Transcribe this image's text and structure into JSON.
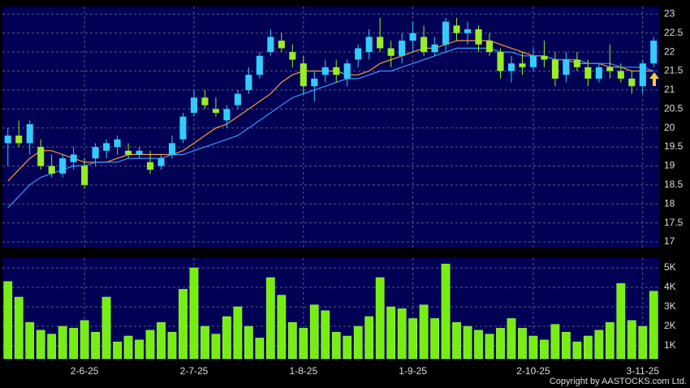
{
  "chart_data": [
    {
      "type": "candlestick",
      "up_color": "#33ccff",
      "down_color": "#99ee22",
      "open": [
        19.6,
        19.8,
        19.6,
        19.5,
        19.0,
        18.8,
        19.1,
        19.0,
        19.2,
        19.4,
        19.5,
        19.4,
        19.3,
        19.1,
        19.0,
        19.3,
        19.7,
        20.4,
        20.8,
        20.5,
        20.2,
        20.6,
        21.0,
        21.4,
        22.0,
        22.3,
        22.0,
        21.7,
        21.1,
        21.4,
        21.6,
        21.3,
        21.8,
        22.0,
        22.4,
        22.1,
        21.9,
        22.3,
        22.4,
        22.0,
        22.2,
        22.7,
        22.5,
        22.6,
        22.3,
        22.0,
        21.5,
        21.7,
        21.6,
        21.9,
        21.8,
        21.4,
        21.8,
        21.6,
        21.3,
        21.6,
        21.5,
        21.3,
        21.1,
        21.7
      ],
      "high": [
        20.0,
        20.2,
        20.2,
        19.7,
        19.3,
        19.3,
        19.5,
        19.2,
        19.6,
        19.7,
        19.8,
        19.6,
        19.5,
        19.4,
        19.3,
        19.8,
        20.4,
        21.0,
        21.0,
        20.8,
        20.6,
        21.0,
        21.6,
        22.0,
        22.6,
        22.5,
        22.2,
        21.9,
        21.5,
        21.8,
        21.8,
        21.8,
        22.2,
        22.6,
        22.9,
        22.3,
        22.5,
        22.8,
        22.7,
        22.4,
        22.9,
        22.9,
        22.8,
        22.7,
        22.5,
        22.1,
        21.9,
        22.0,
        22.1,
        22.3,
        22.0,
        22.0,
        22.0,
        21.8,
        21.7,
        22.2,
        21.7,
        21.5,
        21.8,
        22.4
      ],
      "low": [
        19.0,
        19.5,
        19.3,
        18.9,
        18.7,
        18.7,
        18.9,
        18.4,
        19.0,
        19.2,
        19.3,
        19.2,
        19.2,
        18.8,
        18.9,
        19.2,
        19.6,
        20.3,
        20.5,
        20.3,
        20.0,
        20.5,
        20.9,
        21.3,
        21.9,
        22.0,
        21.6,
        20.9,
        20.7,
        21.2,
        21.2,
        21.1,
        21.6,
        21.8,
        22.0,
        21.6,
        21.7,
        22.0,
        21.9,
        21.9,
        22.0,
        22.3,
        22.2,
        22.0,
        21.9,
        21.3,
        21.2,
        21.4,
        21.5,
        21.6,
        21.1,
        21.2,
        21.5,
        21.1,
        21.2,
        21.3,
        21.2,
        20.9,
        20.9,
        21.6
      ],
      "close": [
        19.8,
        19.6,
        20.1,
        19.0,
        18.8,
        19.2,
        19.3,
        18.5,
        19.5,
        19.6,
        19.7,
        19.3,
        19.4,
        18.9,
        19.2,
        19.6,
        20.3,
        20.8,
        20.6,
        20.4,
        20.5,
        20.9,
        21.4,
        21.9,
        22.4,
        22.1,
        21.8,
        21.1,
        21.3,
        21.6,
        21.4,
        21.7,
        22.1,
        22.4,
        22.1,
        21.9,
        22.3,
        22.5,
        22.0,
        22.2,
        22.8,
        22.5,
        22.6,
        22.2,
        22.0,
        21.5,
        21.7,
        21.6,
        21.9,
        21.8,
        21.3,
        21.8,
        21.6,
        21.3,
        21.6,
        21.5,
        21.3,
        21.1,
        21.7,
        22.3
      ],
      "series": [
        {
          "color": "#ff9933",
          "values": [
            18.6,
            18.9,
            19.2,
            19.4,
            19.4,
            19.3,
            19.2,
            19.1,
            19.1,
            19.1,
            19.2,
            19.3,
            19.3,
            19.3,
            19.3,
            19.3,
            19.4,
            19.6,
            19.8,
            20.0,
            20.1,
            20.3,
            20.5,
            20.7,
            20.9,
            21.2,
            21.4,
            21.5,
            21.5,
            21.5,
            21.5,
            21.4,
            21.4,
            21.5,
            21.7,
            21.8,
            21.9,
            22.0,
            22.1,
            22.1,
            22.2,
            22.3,
            22.3,
            22.3,
            22.3,
            22.2,
            22.1,
            22.0,
            21.9,
            21.9,
            21.8,
            21.8,
            21.7,
            21.7,
            21.7,
            21.6,
            21.6,
            21.5,
            21.5,
            21.5
          ]
        },
        {
          "color": "#3399ff",
          "values": [
            17.9,
            18.2,
            18.5,
            18.7,
            18.8,
            18.9,
            19.0,
            19.0,
            19.1,
            19.1,
            19.1,
            19.2,
            19.2,
            19.2,
            19.2,
            19.3,
            19.3,
            19.4,
            19.5,
            19.6,
            19.7,
            19.8,
            20.0,
            20.2,
            20.4,
            20.6,
            20.8,
            20.9,
            21.0,
            21.1,
            21.2,
            21.3,
            21.3,
            21.4,
            21.5,
            21.5,
            21.6,
            21.7,
            21.8,
            21.9,
            22.0,
            22.1,
            22.1,
            22.1,
            22.1,
            22.0,
            22.0,
            21.9,
            21.9,
            21.9,
            21.8,
            21.8,
            21.8,
            21.7,
            21.7,
            21.7,
            21.6,
            21.6,
            21.6,
            21.5
          ]
        }
      ],
      "ylim": [
        16.85,
        23.2
      ],
      "yticks": [
        17,
        17.5,
        18,
        18.5,
        19,
        19.5,
        20,
        20.5,
        21,
        21.5,
        22,
        22.5,
        23
      ],
      "grid": true
    },
    {
      "type": "bar",
      "color": "#77ee11",
      "categories": [
        null,
        null,
        null,
        null,
        null,
        null,
        null,
        "2-6-25",
        null,
        null,
        null,
        null,
        null,
        null,
        null,
        null,
        null,
        "2-7-25",
        null,
        null,
        null,
        null,
        null,
        null,
        null,
        null,
        null,
        "1-8-25",
        null,
        null,
        null,
        null,
        null,
        null,
        null,
        null,
        null,
        "1-9-25",
        null,
        null,
        null,
        null,
        null,
        null,
        null,
        null,
        null,
        null,
        "2-10-25",
        null,
        null,
        null,
        null,
        null,
        null,
        null,
        null,
        null,
        "3-11-25",
        null
      ],
      "values": [
        4300,
        3500,
        2200,
        1800,
        1600,
        2000,
        1900,
        2300,
        1700,
        3500,
        1200,
        1500,
        1300,
        1800,
        2200,
        1700,
        3900,
        5000,
        2000,
        1600,
        2500,
        3000,
        2000,
        1400,
        4500,
        3600,
        2200,
        1900,
        3100,
        2800,
        1700,
        1500,
        2000,
        2500,
        4500,
        3000,
        2900,
        2400,
        3100,
        2400,
        5200,
        2200,
        2000,
        1800,
        1600,
        1900,
        2400,
        1900,
        1500,
        1300,
        2100,
        1700,
        1200,
        1500,
        1800,
        2200,
        4200,
        2300,
        2000,
        3800
      ],
      "ylim": [
        333,
        5500
      ],
      "yticks": [
        {
          "value": 1000,
          "label": "1K"
        },
        {
          "value": 2000,
          "label": "2K"
        },
        {
          "value": 3000,
          "label": "3K"
        },
        {
          "value": 4000,
          "label": "4K"
        },
        {
          "value": 5000,
          "label": "5K"
        }
      ],
      "grid": true
    }
  ],
  "footer": "Copyright by AASTOCKS.com Ltd."
}
